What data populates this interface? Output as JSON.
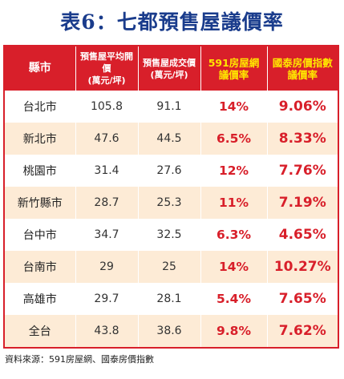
{
  "title": "表6：七都預售屋議價率",
  "headers": {
    "city": "縣市",
    "avg_price_l1": "預售屋平均開價",
    "avg_price_l2": "(萬元/坪)",
    "deal_price_l1": "預售屋成交價",
    "deal_price_l2": "(萬元/坪)",
    "net591_l1": "591房屋網",
    "net591_l2": "議價率",
    "cathay_l1": "國泰房價指數",
    "cathay_l2": "議價率"
  },
  "rows": [
    {
      "city": "台北市",
      "avg": "105.8",
      "deal": "91.1",
      "net591": "14%",
      "cathay": "9.06%"
    },
    {
      "city": "新北市",
      "avg": "47.6",
      "deal": "44.5",
      "net591": "6.5%",
      "cathay": "8.33%"
    },
    {
      "city": "桃園市",
      "avg": "31.4",
      "deal": "27.6",
      "net591": "12%",
      "cathay": "7.76%"
    },
    {
      "city": "新竹縣市",
      "avg": "28.7",
      "deal": "25.3",
      "net591": "11%",
      "cathay": "7.19%"
    },
    {
      "city": "台中市",
      "avg": "34.7",
      "deal": "32.5",
      "net591": "6.3%",
      "cathay": "4.65%"
    },
    {
      "city": "台南市",
      "avg": "29",
      "deal": "25",
      "net591": "14%",
      "cathay": "10.27%"
    },
    {
      "city": "高雄市",
      "avg": "29.7",
      "deal": "28.1",
      "net591": "5.4%",
      "cathay": "7.65%"
    },
    {
      "city": "全台",
      "avg": "43.8",
      "deal": "38.6",
      "net591": "9.8%",
      "cathay": "7.62%"
    }
  ],
  "source": "資料來源：591房屋網、國泰房價指數",
  "colors": {
    "title": "#1a3c8c",
    "header_bg": "#d81f2a",
    "header_highlight_text": "#ffe600",
    "row_stripe": "#fdebd6",
    "percent_text": "#d81f2a"
  }
}
